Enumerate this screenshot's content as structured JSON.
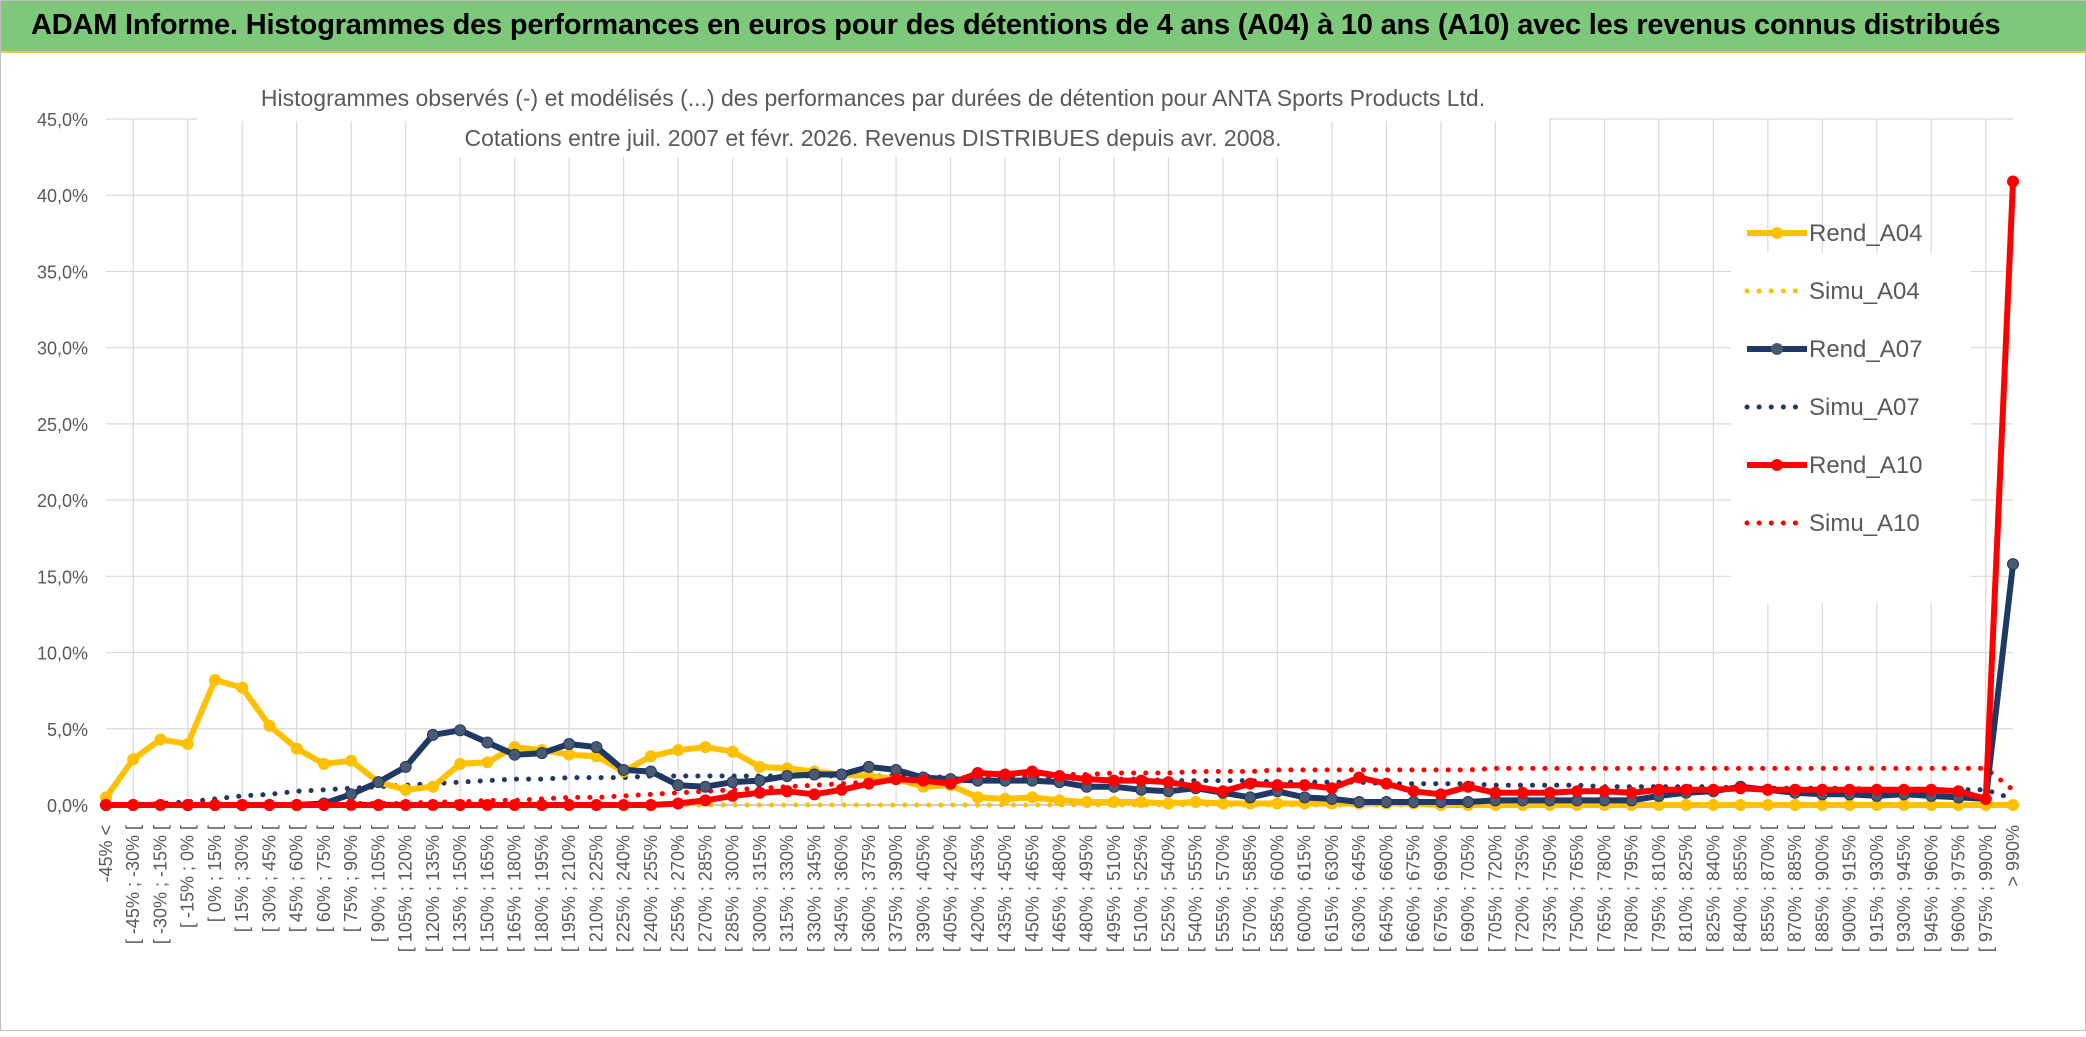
{
  "banner": {
    "title": "ADAM Informe. Histogrammes des performances en euros pour des détentions de 4 ans (A04) à 10 ans (A10) avec les revenus connus distribués"
  },
  "colors": {
    "banner_bg": "#7dc87a",
    "rend_a04": "#ffc000",
    "rend_a07": "#1f3864",
    "rend_a07_marker": "#4a5a72",
    "rend_a10": "#ff0000",
    "grid": "#d9d9d9",
    "axis_text": "#595959"
  },
  "chart_data": {
    "type": "line",
    "title_line1": "Histogrammes observés (-) et modélisés (...) des performances par durées de détention pour ANTA Sports Products Ltd.",
    "title_line2": "Cotations entre juil. 2007 et févr. 2026. Revenus DISTRIBUES depuis avr. 2008.",
    "xlabel": "",
    "ylabel": "",
    "ylim": [
      0,
      45
    ],
    "yticks": [
      "0,0%",
      "5,0%",
      "10,0%",
      "15,0%",
      "20,0%",
      "25,0%",
      "30,0%",
      "35,0%",
      "40,0%",
      "45,0%"
    ],
    "legend_position": "right",
    "categories": [
      "-45% <",
      "[ -45% ; -30% [",
      "[ -30% ; -15% [",
      "[ -15% ; 0% [",
      "[ 0% ; 15% [",
      "[ 15% ; 30% [",
      "[ 30% ; 45% [",
      "[ 45% ; 60% [",
      "[ 60% ; 75% [",
      "[ 75% ; 90% [",
      "[ 90% ; 105% [",
      "[ 105% ; 120% [",
      "[ 120% ; 135% [",
      "[ 135% ; 150% [",
      "[ 150% ; 165% [",
      "[ 165% ; 180% [",
      "[ 180% ; 195% [",
      "[ 195% ; 210% [",
      "[ 210% ; 225% [",
      "[ 225% ; 240% [",
      "[ 240% ; 255% [",
      "[ 255% ; 270% [",
      "[ 270% ; 285% [",
      "[ 285% ; 300% [",
      "[ 300% ; 315% [",
      "[ 315% ; 330% [",
      "[ 330% ; 345% [",
      "[ 345% ; 360% [",
      "[ 360% ; 375% [",
      "[ 375% ; 390% [",
      "[ 390% ; 405% [",
      "[ 405% ; 420% [",
      "[ 420% ; 435% [",
      "[ 435% ; 450% [",
      "[ 450% ; 465% [",
      "[ 465% ; 480% [",
      "[ 480% ; 495% [",
      "[ 495% ; 510% [",
      "[ 510% ; 525% [",
      "[ 525% ; 540% [",
      "[ 540% ; 555% [",
      "[ 555% ; 570% [",
      "[ 570% ; 585% [",
      "[ 585% ; 600% [",
      "[ 600% ; 615% [",
      "[ 615% ; 630% [",
      "[ 630% ; 645% [",
      "[ 645% ; 660% [",
      "[ 660% ; 675% [",
      "[ 675% ; 690% [",
      "[ 690% ; 705% [",
      "[ 705% ; 720% [",
      "[ 720% ; 735% [",
      "[ 735% ; 750% [",
      "[ 750% ; 765% [",
      "[ 765% ; 780% [",
      "[ 780% ; 795% [",
      "[ 795% ; 810% [",
      "[ 810% ; 825% [",
      "[ 825% ; 840% [",
      "[ 840% ; 855% [",
      "[ 855% ; 870% [",
      "[ 870% ; 885% [",
      "[ 885% ; 900% [",
      "[ 900% ; 915% [",
      "[ 915% ; 930% [",
      "[ 930% ; 945% [",
      "[ 945% ; 960% [",
      "[ 960% ; 975% [",
      "[ 975% ; 990% [",
      "> 990%"
    ],
    "series": [
      {
        "name": "Rend_A04",
        "style": "solid",
        "color": "#ffc000",
        "values": [
          0.5,
          3.0,
          4.3,
          4.0,
          8.2,
          7.7,
          5.2,
          3.7,
          2.7,
          2.9,
          1.5,
          1.0,
          1.2,
          2.7,
          2.8,
          3.8,
          3.6,
          3.3,
          3.2,
          2.2,
          3.2,
          3.6,
          3.8,
          3.5,
          2.5,
          2.4,
          2.2,
          2.0,
          1.9,
          1.7,
          1.2,
          1.3,
          0.5,
          0.4,
          0.5,
          0.3,
          0.2,
          0.2,
          0.2,
          0.1,
          0.2,
          0.1,
          0.1,
          0.1,
          0.1,
          0.1,
          0.1,
          0.1,
          0.1,
          0.0,
          0.0,
          0.0,
          0.0,
          0.0,
          0.0,
          0.0,
          0.0,
          0.0,
          0.0,
          0.0,
          0.0,
          0.0,
          0.0,
          0.0,
          0.0,
          0.0,
          0.0,
          0.0,
          0.0,
          0.0,
          0.0
        ]
      },
      {
        "name": "Simu_A04",
        "style": "dotted",
        "color": "#ffc000",
        "values": [
          0.0,
          0.0,
          0.0,
          0.0,
          0.0,
          0.0,
          0.0,
          0.0,
          0.0,
          0.0,
          0.0,
          0.0,
          0.0,
          0.0,
          0.0,
          0.0,
          0.0,
          0.0,
          0.0,
          0.0,
          0.0,
          0.0,
          0.0,
          0.0,
          0.0,
          0.0,
          0.0,
          0.0,
          0.0,
          0.0,
          0.0,
          0.0,
          0.0,
          0.0,
          0.0,
          0.0,
          0.0,
          0.0,
          0.0,
          0.0,
          0.0,
          0.0,
          0.0,
          0.0,
          0.0,
          0.0,
          0.0,
          0.0,
          0.0,
          0.0,
          0.0,
          0.0,
          0.0,
          0.0,
          0.0,
          0.0,
          0.0,
          0.0,
          0.0,
          0.0,
          0.0,
          0.0,
          0.0,
          0.0,
          0.0,
          0.0,
          0.0,
          0.0,
          0.0,
          0.0,
          0.0
        ]
      },
      {
        "name": "Rend_A07",
        "style": "solid",
        "color": "#1f3864",
        "values": [
          0.0,
          0.0,
          0.0,
          0.0,
          0.0,
          0.0,
          0.0,
          0.0,
          0.1,
          0.7,
          1.5,
          2.5,
          4.6,
          4.9,
          4.1,
          3.3,
          3.4,
          4.0,
          3.8,
          2.3,
          2.2,
          1.3,
          1.2,
          1.5,
          1.6,
          1.9,
          2.0,
          2.0,
          2.5,
          2.3,
          1.8,
          1.7,
          1.6,
          1.6,
          1.6,
          1.5,
          1.2,
          1.2,
          1.0,
          0.9,
          1.1,
          0.8,
          0.5,
          0.9,
          0.5,
          0.4,
          0.2,
          0.2,
          0.2,
          0.2,
          0.2,
          0.3,
          0.3,
          0.3,
          0.3,
          0.3,
          0.3,
          0.6,
          0.8,
          0.9,
          1.2,
          1.0,
          0.8,
          0.7,
          0.7,
          0.6,
          0.7,
          0.6,
          0.5,
          0.4,
          15.8
        ]
      },
      {
        "name": "Simu_A07",
        "style": "dotted",
        "color": "#1f3864",
        "values": [
          0.0,
          0.0,
          0.1,
          0.2,
          0.4,
          0.6,
          0.7,
          0.9,
          1.0,
          1.1,
          1.2,
          1.3,
          1.4,
          1.5,
          1.6,
          1.7,
          1.7,
          1.8,
          1.8,
          1.8,
          1.9,
          1.9,
          1.9,
          1.9,
          1.9,
          1.9,
          1.9,
          1.9,
          1.9,
          1.9,
          1.9,
          1.8,
          1.8,
          1.8,
          1.8,
          1.8,
          1.7,
          1.7,
          1.7,
          1.6,
          1.6,
          1.6,
          1.6,
          1.5,
          1.5,
          1.5,
          1.5,
          1.4,
          1.4,
          1.4,
          1.4,
          1.3,
          1.3,
          1.3,
          1.3,
          1.2,
          1.2,
          1.2,
          1.2,
          1.2,
          1.1,
          1.1,
          1.1,
          1.1,
          1.1,
          1.0,
          1.0,
          1.0,
          1.0,
          1.0,
          0.4
        ]
      },
      {
        "name": "Rend_A10",
        "style": "solid",
        "color": "#ff0000",
        "values": [
          0.0,
          0.0,
          0.0,
          0.0,
          0.0,
          0.0,
          0.0,
          0.0,
          0.0,
          0.0,
          0.0,
          0.0,
          0.0,
          0.0,
          0.0,
          0.0,
          0.0,
          0.0,
          0.0,
          0.0,
          0.0,
          0.1,
          0.3,
          0.6,
          0.8,
          0.9,
          0.7,
          1.0,
          1.4,
          1.7,
          1.6,
          1.4,
          2.1,
          2.0,
          2.2,
          1.9,
          1.7,
          1.6,
          1.6,
          1.5,
          1.2,
          0.9,
          1.4,
          1.3,
          1.3,
          1.1,
          1.8,
          1.4,
          0.9,
          0.7,
          1.2,
          0.8,
          0.8,
          0.8,
          0.9,
          0.9,
          0.8,
          1.0,
          1.0,
          1.0,
          1.1,
          1.0,
          1.0,
          1.0,
          1.0,
          1.0,
          1.0,
          1.0,
          0.9,
          0.4,
          40.9
        ]
      },
      {
        "name": "Simu_A10",
        "style": "dotted",
        "color": "#ff0000",
        "values": [
          0.0,
          0.0,
          0.0,
          0.0,
          0.0,
          0.0,
          0.0,
          0.0,
          0.0,
          0.1,
          0.1,
          0.1,
          0.2,
          0.2,
          0.3,
          0.3,
          0.4,
          0.5,
          0.5,
          0.6,
          0.7,
          0.8,
          0.9,
          1.0,
          1.1,
          1.2,
          1.3,
          1.4,
          1.5,
          1.6,
          1.6,
          1.7,
          1.8,
          1.9,
          1.9,
          2.0,
          2.0,
          2.1,
          2.1,
          2.1,
          2.2,
          2.2,
          2.2,
          2.3,
          2.3,
          2.3,
          2.3,
          2.3,
          2.3,
          2.3,
          2.3,
          2.4,
          2.4,
          2.4,
          2.4,
          2.4,
          2.4,
          2.4,
          2.4,
          2.4,
          2.4,
          2.4,
          2.4,
          2.4,
          2.4,
          2.4,
          2.4,
          2.4,
          2.4,
          2.4,
          1.0
        ]
      }
    ]
  }
}
